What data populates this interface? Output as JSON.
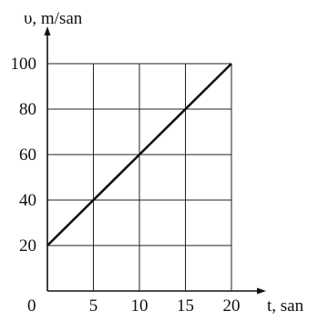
{
  "chart_data": {
    "type": "line",
    "ylabel": "υ, m/san",
    "xlabel": "t, san",
    "origin_label": "0",
    "xlim": [
      0,
      20
    ],
    "ylim": [
      0,
      100
    ],
    "x_ticks": [
      5,
      10,
      15,
      20
    ],
    "y_ticks": [
      20,
      40,
      60,
      80,
      100
    ],
    "grid": true,
    "series": [
      {
        "x": [
          0,
          5,
          10,
          15,
          20
        ],
        "y": [
          20,
          40,
          60,
          80,
          100
        ]
      }
    ]
  }
}
